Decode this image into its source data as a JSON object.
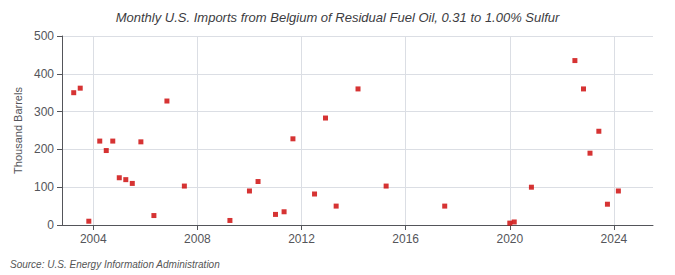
{
  "chart_data": {
    "type": "scatter",
    "title": "Monthly U.S. Imports from Belgium of Residual Fuel Oil, 0.31 to 1.00% Sulfur",
    "ylabel": "Thousand Barrels",
    "annotations": [
      "Source: U.S. Energy Information Administration"
    ],
    "color": "#cc0000",
    "marker": "square",
    "grid": true,
    "xlim": [
      2002.8,
      2025.5
    ],
    "xticks": [
      2004,
      2008,
      2012,
      2016,
      2020,
      2024
    ],
    "ylim": [
      0,
      500
    ],
    "yticks": [
      0,
      100,
      200,
      300,
      400,
      500
    ],
    "x": [
      2003.25,
      2003.5,
      2003.83,
      2004.25,
      2004.5,
      2004.75,
      2005.0,
      2005.25,
      2005.5,
      2005.83,
      2006.33,
      2006.83,
      2007.5,
      2009.25,
      2010.0,
      2010.33,
      2011.0,
      2011.33,
      2011.67,
      2012.5,
      2012.92,
      2013.33,
      2014.17,
      2015.25,
      2017.5,
      2020.0,
      2020.17,
      2020.83,
      2022.5,
      2022.83,
      2023.08,
      2023.42,
      2023.75,
      2024.17
    ],
    "values": [
      350,
      362,
      10,
      222,
      197,
      222,
      125,
      120,
      110,
      220,
      25,
      328,
      103,
      12,
      90,
      115,
      28,
      35,
      228,
      82,
      283,
      50,
      360,
      103,
      50,
      5,
      8,
      100,
      435,
      360,
      190,
      248,
      55,
      90
    ]
  }
}
